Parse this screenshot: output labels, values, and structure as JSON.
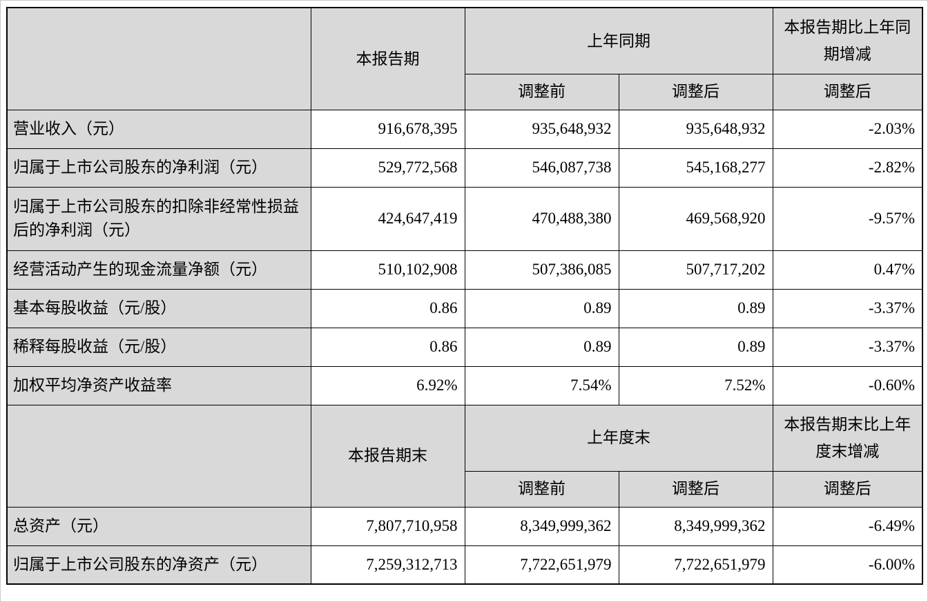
{
  "section1": {
    "col_current": "本报告期",
    "col_prior": "上年同期",
    "col_change": "本报告期比上年同期增减",
    "sub_before": "调整前",
    "sub_after": "调整后",
    "sub_change": "调整后",
    "rows": [
      {
        "label": "营业收入（元）",
        "current": "916,678,395",
        "before": "935,648,932",
        "after": "935,648,932",
        "change": "-2.03%"
      },
      {
        "label": "归属于上市公司股东的净利润（元）",
        "current": "529,772,568",
        "before": "546,087,738",
        "after": "545,168,277",
        "change": "-2.82%"
      },
      {
        "label": "归属于上市公司股东的扣除非经常性损益后的净利润（元）",
        "current": "424,647,419",
        "before": "470,488,380",
        "after": "469,568,920",
        "change": "-9.57%"
      },
      {
        "label": "经营活动产生的现金流量净额（元）",
        "current": "510,102,908",
        "before": "507,386,085",
        "after": "507,717,202",
        "change": "0.47%"
      },
      {
        "label": "基本每股收益（元/股）",
        "current": "0.86",
        "before": "0.89",
        "after": "0.89",
        "change": "-3.37%"
      },
      {
        "label": "稀释每股收益（元/股）",
        "current": "0.86",
        "before": "0.89",
        "after": "0.89",
        "change": "-3.37%"
      },
      {
        "label": "加权平均净资产收益率",
        "current": "6.92%",
        "before": "7.54%",
        "after": "7.52%",
        "change": "-0.60%"
      }
    ]
  },
  "section2": {
    "col_current": "本报告期末",
    "col_prior": "上年度末",
    "col_change": "本报告期末比上年度末增减",
    "sub_before": "调整前",
    "sub_after": "调整后",
    "sub_change": "调整后",
    "rows": [
      {
        "label": "总资产（元）",
        "current": "7,807,710,958",
        "before": "8,349,999,362",
        "after": "8,349,999,362",
        "change": "-6.49%"
      },
      {
        "label": "归属于上市公司股东的净资产（元）",
        "current": "7,259,312,713",
        "before": "7,722,651,979",
        "after": "7,722,651,979",
        "change": "-6.00%"
      }
    ]
  }
}
